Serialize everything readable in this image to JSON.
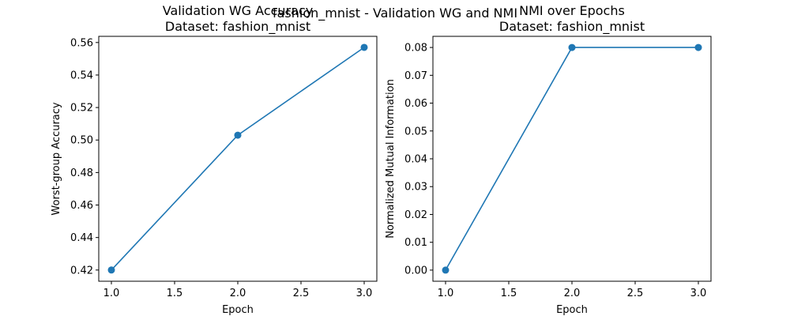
{
  "figure": {
    "suptitle": "fashion_mnist - Validation WG and NMI"
  },
  "chart_data": [
    {
      "type": "line",
      "title_line1": "Validation WG Accuracy",
      "title_line2": "Dataset: fashion_mnist",
      "xlabel": "Epoch",
      "ylabel": "Worst-group Accuracy",
      "x": [
        1.0,
        2.0,
        3.0
      ],
      "series": [
        {
          "values": [
            0.42,
            0.503,
            0.557
          ]
        }
      ],
      "xlim": [
        0.9,
        3.1
      ],
      "ylim": [
        0.4131,
        0.5638
      ],
      "xticks": [
        "1.0",
        "1.5",
        "2.0",
        "2.5",
        "3.0"
      ],
      "xtick_values": [
        1.0,
        1.5,
        2.0,
        2.5,
        3.0
      ],
      "yticks": [
        "0.42",
        "0.44",
        "0.46",
        "0.48",
        "0.50",
        "0.52",
        "0.54",
        "0.56"
      ],
      "ytick_values": [
        0.42,
        0.44,
        0.46,
        0.48,
        0.5,
        0.52,
        0.54,
        0.56
      ],
      "grid": false,
      "color": "#1f77b4"
    },
    {
      "type": "line",
      "title_line1": "NMI over Epochs",
      "title_line2": "Dataset: fashion_mnist",
      "xlabel": "Epoch",
      "ylabel": "Normalized Mutual Information",
      "x": [
        1.0,
        2.0,
        3.0
      ],
      "series": [
        {
          "values": [
            0.0,
            0.08,
            0.08
          ]
        }
      ],
      "xlim": [
        0.9,
        3.1
      ],
      "ylim": [
        -0.004,
        0.084
      ],
      "xticks": [
        "1.0",
        "1.5",
        "2.0",
        "2.5",
        "3.0"
      ],
      "xtick_values": [
        1.0,
        1.5,
        2.0,
        2.5,
        3.0
      ],
      "yticks": [
        "0.00",
        "0.01",
        "0.02",
        "0.03",
        "0.04",
        "0.05",
        "0.06",
        "0.07",
        "0.08"
      ],
      "ytick_values": [
        0.0,
        0.01,
        0.02,
        0.03,
        0.04,
        0.05,
        0.06,
        0.07,
        0.08
      ],
      "grid": false,
      "color": "#1f77b4"
    }
  ]
}
